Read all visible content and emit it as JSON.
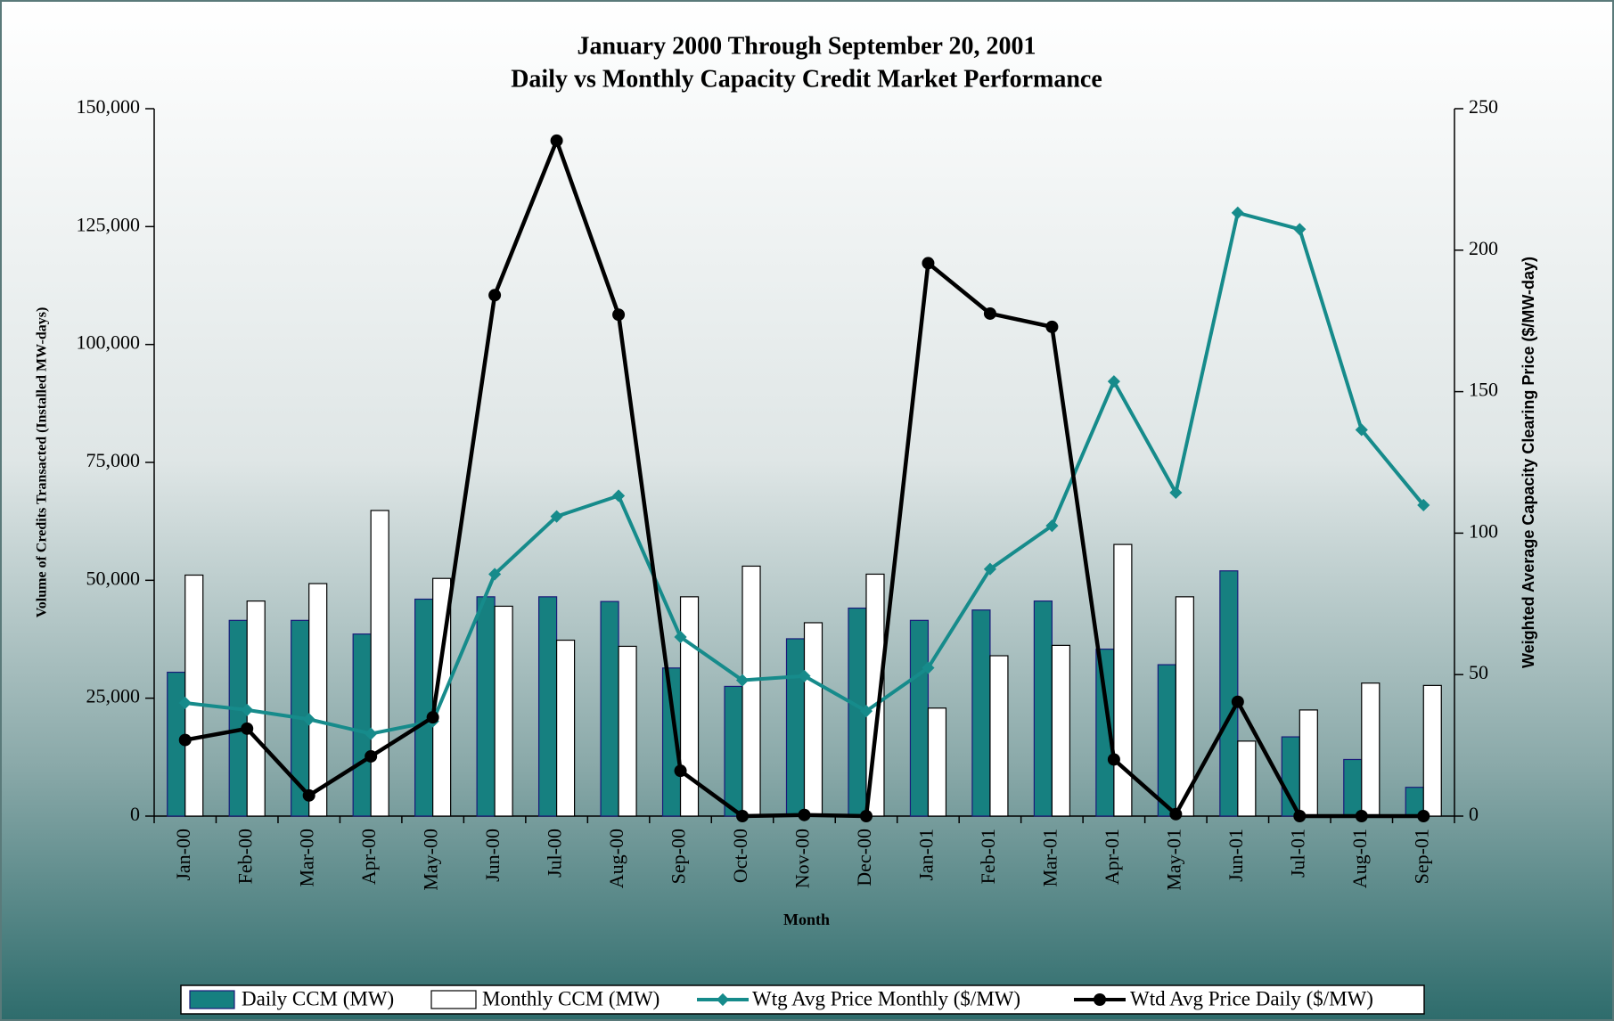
{
  "chart_data": {
    "type": "bar_line",
    "title": "January 2000 Through September 20, 2001",
    "subtitle": "Daily vs Monthly Capacity Credit Market Performance",
    "xlabel": "Month",
    "ylabel": "Volume of Credits Transacted (Installed MW-days)",
    "y2label": "Weighted Average Capacity Clearing Price ($/MW-day)",
    "categories": [
      "Jan-00",
      "Feb-00",
      "Mar-00",
      "Apr-00",
      "May-00",
      "Jun-00",
      "Jul-00",
      "Aug-00",
      "Sep-00",
      "Oct-00",
      "Nov-00",
      "Dec-00",
      "Jan-01",
      "Feb-01",
      "Mar-01",
      "Apr-01",
      "May-01",
      "Jun-01",
      "Jul-01",
      "Aug-01",
      "Sep-01"
    ],
    "ylim": [
      0,
      150000
    ],
    "yticks": [
      {
        "value": 0,
        "label": "0"
      },
      {
        "value": 25000,
        "label": "25,000"
      },
      {
        "value": 50000,
        "label": "50,000"
      },
      {
        "value": 75000,
        "label": "75,000"
      },
      {
        "value": 100000,
        "label": "100,000"
      },
      {
        "value": 125000,
        "label": "125,000"
      },
      {
        "value": 150000,
        "label": "150,000"
      }
    ],
    "y2lim": [
      0,
      250
    ],
    "y2ticks": [
      0,
      50,
      100,
      150,
      200,
      250
    ],
    "series": [
      {
        "name": "Daily CCM (MW)",
        "kind": "bar",
        "color": "#168080",
        "axis": "y",
        "values": [
          30500,
          41500,
          41500,
          38600,
          46000,
          46500,
          46500,
          45500,
          31400,
          27500,
          37600,
          44100,
          41500,
          43700,
          45600,
          35400,
          32100,
          52000,
          16800,
          12000,
          6100
        ]
      },
      {
        "name": "Monthly CCM (MW)",
        "kind": "bar",
        "color": "#ffffff",
        "axis": "y",
        "values": [
          51100,
          45600,
          49300,
          64800,
          50400,
          44500,
          37300,
          36000,
          46500,
          53000,
          41000,
          51300,
          22900,
          34000,
          36200,
          57600,
          46500,
          15900,
          22500,
          28200,
          27700
        ]
      },
      {
        "name": "Wtg Avg Price Monthly ($/MW)",
        "kind": "line",
        "color": "#168b8b",
        "axis": "y2",
        "values": [
          40,
          37.5,
          34.2,
          29.1,
          33.5,
          85.5,
          105.9,
          113.2,
          63.3,
          48,
          49.5,
          37.1,
          52.4,
          87.3,
          102.6,
          153.6,
          114.3,
          213.2,
          207.4,
          136.5,
          109.9
        ]
      },
      {
        "name": "Wtd Avg Price Daily ($/MW)",
        "kind": "line",
        "color": "#000000",
        "axis": "y2",
        "values": [
          26.9,
          30.9,
          7.3,
          21.1,
          34.9,
          184.1,
          238.7,
          177.2,
          16,
          0,
          0.4,
          0,
          195.4,
          177.6,
          172.9,
          20,
          0.7,
          40.4,
          0,
          0,
          0
        ]
      }
    ]
  }
}
